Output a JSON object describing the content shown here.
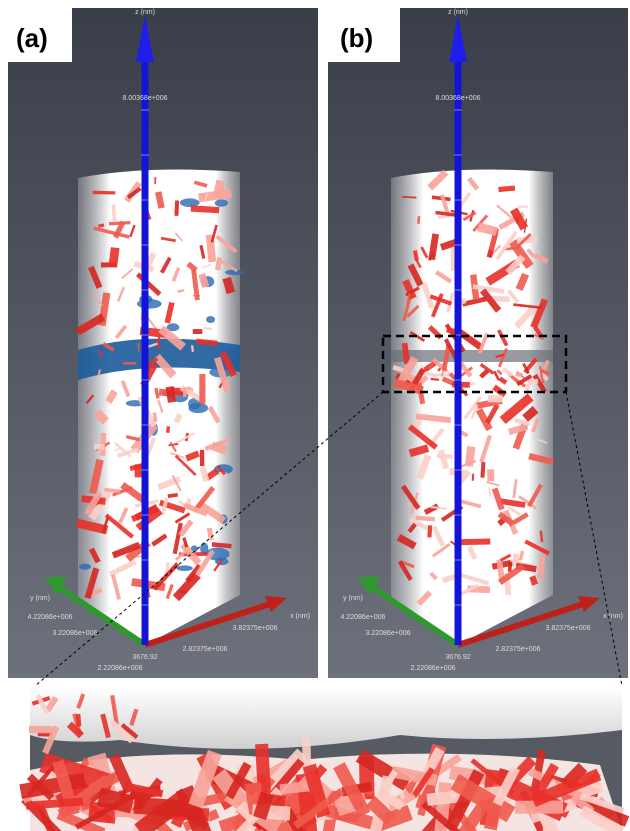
{
  "panels": [
    {
      "label": "(a)",
      "z_axis_label": "z (nm)",
      "z_tick": "8.00368e+006",
      "y_axis_label": "y (nm)",
      "y_ticks": [
        "4.22086e+006",
        "3.22086e+006",
        "2.22086e+006"
      ],
      "origin": "3676.92",
      "x_ticks": [
        "2.82375e+006",
        "3.82375e+006"
      ],
      "x_axis_label": "x (nm)"
    },
    {
      "label": "(b)",
      "z_axis_label": "z (nm)",
      "z_tick": "8.00368e+006",
      "y_axis_label": "y (nm)",
      "y_ticks": [
        "4.22086e+006",
        "3.22086e+006",
        "2.22086e+006"
      ],
      "origin": "3676.92",
      "x_ticks": [
        "2.82375e+006",
        "3.82375e+006"
      ],
      "x_axis_label": "x (nm)"
    }
  ]
}
